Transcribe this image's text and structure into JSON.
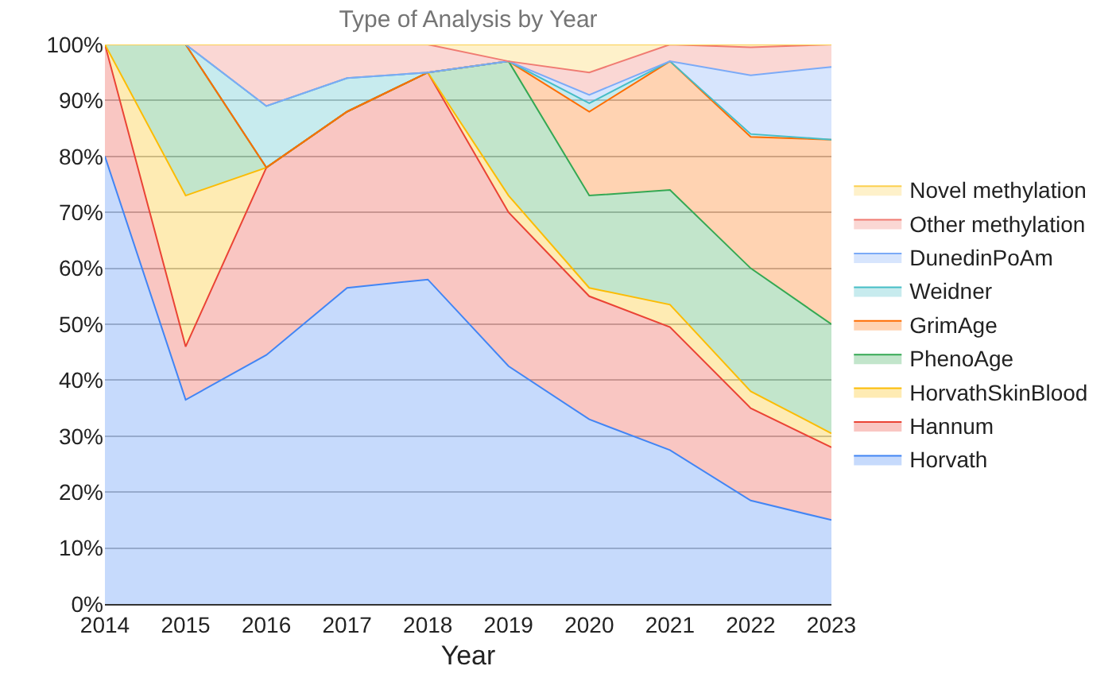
{
  "chart_data": {
    "type": "area",
    "stacked": true,
    "title": "Type of Analysis by Year",
    "xlabel": "Year",
    "x": [
      2014,
      2015,
      2016,
      2017,
      2018,
      2019,
      2020,
      2021,
      2022,
      2023
    ],
    "xlim": [
      2014,
      2023
    ],
    "xticks": [
      2014,
      2015,
      2016,
      2017,
      2018,
      2019,
      2020,
      2021,
      2022,
      2023
    ],
    "ylim": [
      0,
      100
    ],
    "yticks": [
      {
        "value": 0,
        "label": "0%"
      },
      {
        "value": 10,
        "label": "10%"
      },
      {
        "value": 20,
        "label": "20%"
      },
      {
        "value": 30,
        "label": "30%"
      },
      {
        "value": 40,
        "label": "40%"
      },
      {
        "value": 50,
        "label": "50%"
      },
      {
        "value": 60,
        "label": "60%"
      },
      {
        "value": 70,
        "label": "70%"
      },
      {
        "value": 80,
        "label": "80%"
      },
      {
        "value": 90,
        "label": "90%"
      },
      {
        "value": 100,
        "label": "100%"
      }
    ],
    "grid": "y",
    "legend": "right",
    "series": [
      {
        "name": "Horvath",
        "color": "#4285f4",
        "values": [
          80,
          36.5,
          44.5,
          56.5,
          58,
          42.5,
          33,
          27.5,
          18.5,
          15
        ]
      },
      {
        "name": "Hannum",
        "color": "#ea4335",
        "values": [
          20,
          9.5,
          33.5,
          31.5,
          37,
          27.5,
          22,
          22,
          16.5,
          13
        ]
      },
      {
        "name": "HorvathSkinBlood",
        "color": "#fbbc04",
        "values": [
          0,
          27,
          0,
          0,
          0,
          3,
          1.5,
          4,
          3,
          2.5
        ]
      },
      {
        "name": "PhenoAge",
        "color": "#34a853",
        "values": [
          0,
          27,
          0,
          0,
          0,
          24,
          16.5,
          20.5,
          22,
          19.5
        ]
      },
      {
        "name": "GrimAge",
        "color": "#ff6d01",
        "values": [
          0,
          0,
          0,
          0,
          0,
          0,
          15,
          23,
          23.5,
          33
        ]
      },
      {
        "name": "Weidner",
        "color": "#46bdc6",
        "values": [
          0,
          0,
          11,
          6,
          0,
          0,
          1.5,
          0,
          0.5,
          0
        ]
      },
      {
        "name": "DunedinPoAm",
        "color": "#7baaf7",
        "values": [
          0,
          0,
          0,
          0,
          0,
          0,
          1.5,
          0,
          10.5,
          13
        ]
      },
      {
        "name": "Other methylation",
        "color": "#f07b72",
        "values": [
          0,
          0,
          11,
          6,
          5,
          0,
          4,
          3,
          5,
          4
        ]
      },
      {
        "name": "Novel methylation",
        "color": "#fcd04f",
        "values": [
          0,
          0,
          0,
          0,
          0,
          3,
          5,
          0,
          0.5,
          0
        ]
      }
    ]
  }
}
